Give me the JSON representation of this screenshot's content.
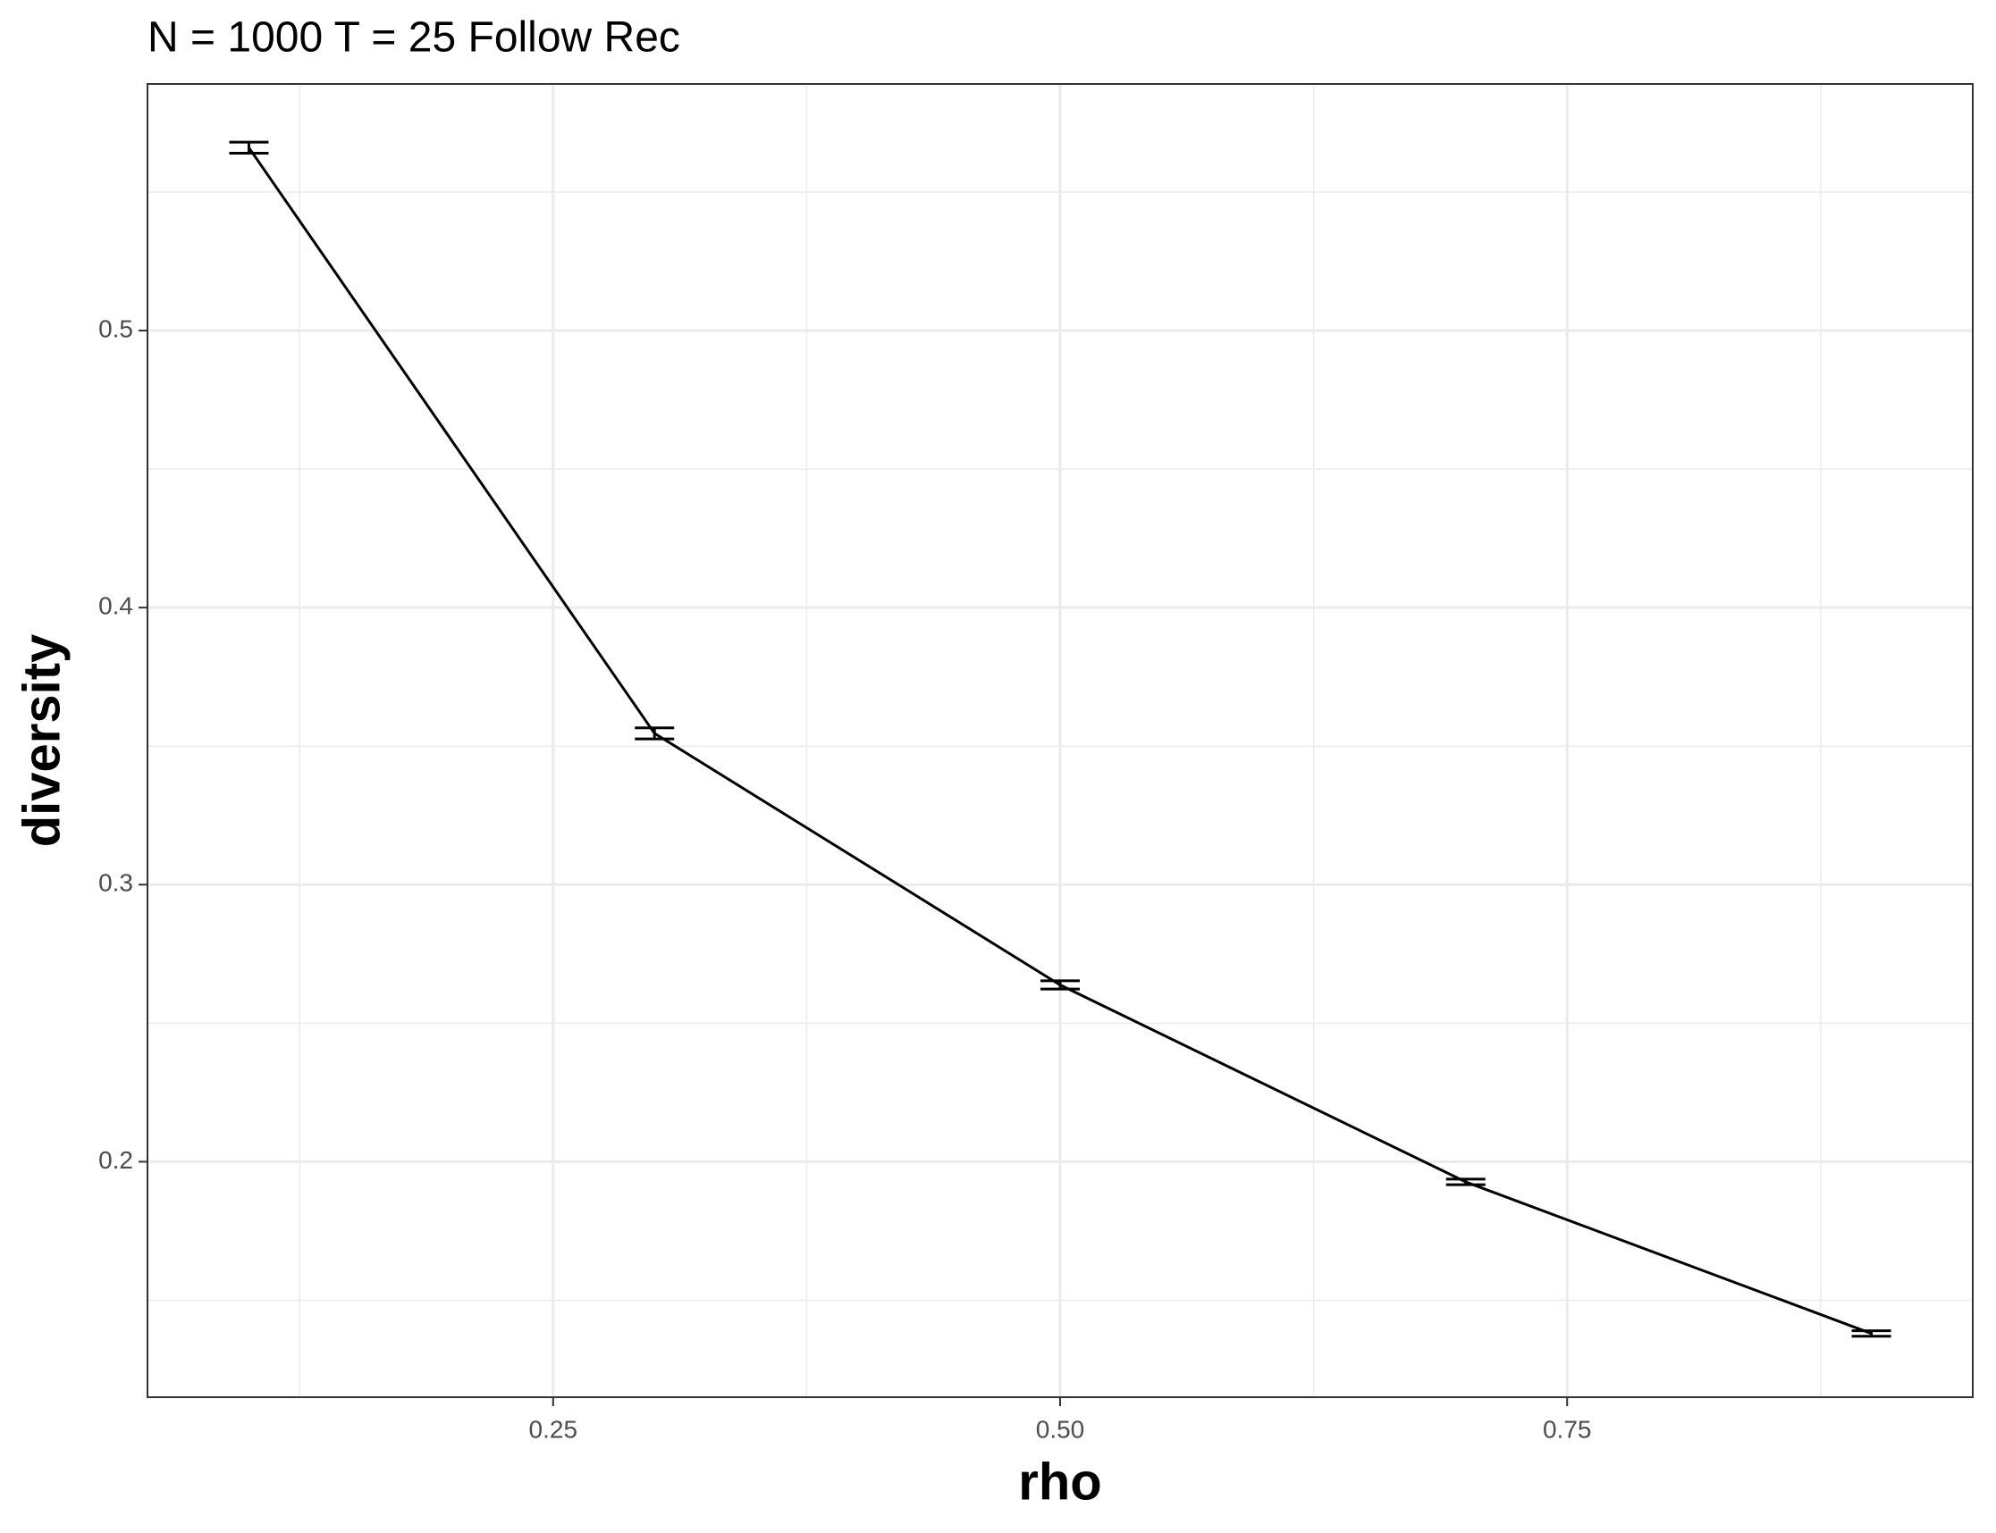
{
  "chart_data": {
    "type": "line",
    "title": "N = 1000 T = 25 Follow Rec",
    "x_label": "rho",
    "y_label": "diversity",
    "x": [
      0.1,
      0.3,
      0.5,
      0.7,
      0.9
    ],
    "series": [
      {
        "color": "#000000",
        "values": [
          0.566,
          0.3546,
          0.2638,
          0.1927,
          0.138
        ],
        "errors": [
          0.002,
          0.002,
          0.0015,
          0.001,
          0.001
        ]
      }
    ],
    "xlim": [
      0.05,
      0.95
    ],
    "xticks": [
      {
        "value": 0.25,
        "label": "0.25"
      },
      {
        "value": 0.5,
        "label": "0.50"
      },
      {
        "value": 0.75,
        "label": "0.75"
      }
    ],
    "x_minor_ticks": [
      0.125,
      0.375,
      0.625,
      0.875
    ],
    "ylim": [
      0.115,
      0.589
    ],
    "yticks": [
      0.2,
      0.3,
      0.4,
      0.5
    ],
    "y_minor_ticks": [
      0.15,
      0.25,
      0.35,
      0.45,
      0.55
    ],
    "grid": true
  }
}
